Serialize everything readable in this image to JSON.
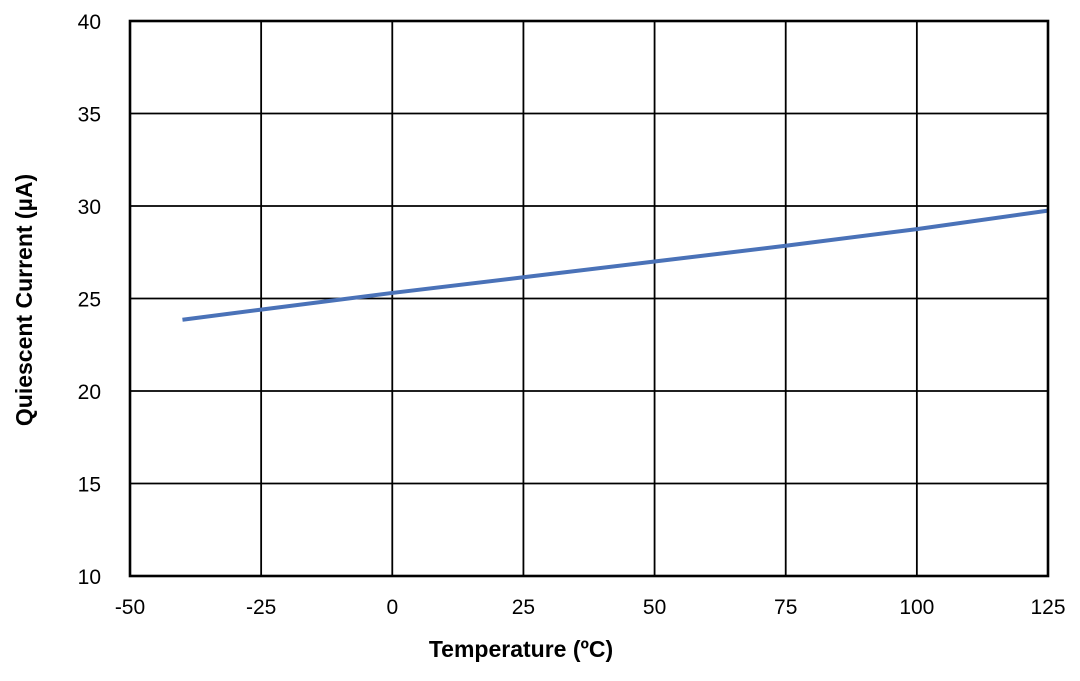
{
  "chart_data": {
    "type": "line",
    "xlabel": "Temperature (ºC)",
    "ylabel": "Quiescent Current (µA)",
    "xlim": [
      -50,
      125
    ],
    "ylim": [
      10,
      40
    ],
    "xticks": [
      "-50",
      "-25",
      "0",
      "25",
      "50",
      "75",
      "100",
      "125"
    ],
    "yticks": [
      "10",
      "15",
      "20",
      "25",
      "30",
      "35",
      "40"
    ],
    "grid": true,
    "legend": "none",
    "series": [
      {
        "color": "#4a72b8",
        "x": [
          -40,
          -25,
          0,
          25,
          50,
          75,
          100,
          125
        ],
        "y": [
          23.85,
          24.4,
          25.3,
          26.15,
          27.0,
          27.85,
          28.75,
          29.75
        ]
      }
    ]
  }
}
